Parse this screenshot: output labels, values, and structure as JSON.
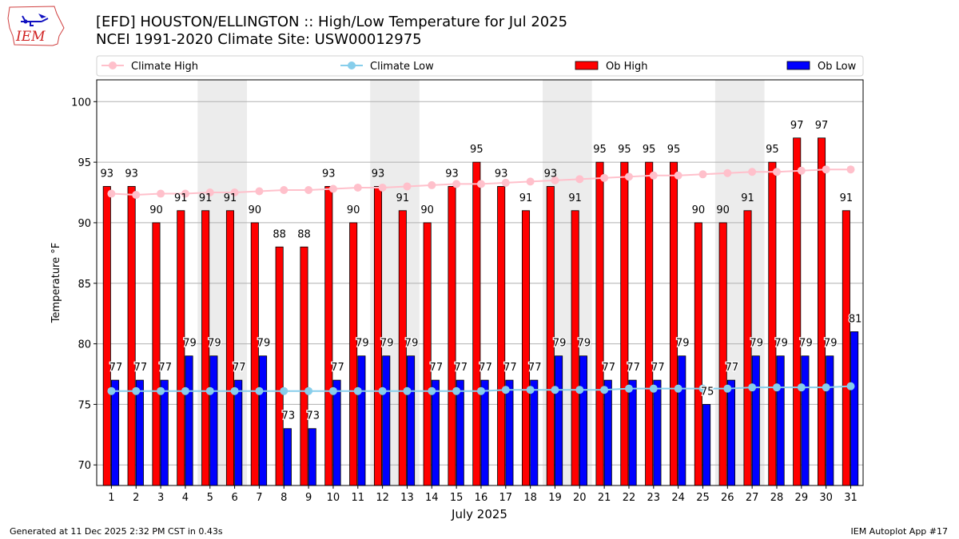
{
  "header": {
    "logo_text": "IEM",
    "title_line1": "[EFD] HOUSTON/ELLINGTON :: High/Low Temperature for Jul 2025",
    "title_line2": "NCEI 1991-2020 Climate Site: USW00012975"
  },
  "footer": {
    "left": "Generated at 11 Dec 2025 2:32 PM CST in 0.43s",
    "right": "IEM Autoplot App #17"
  },
  "chart_data": {
    "type": "bar",
    "title": "[EFD] HOUSTON/ELLINGTON :: High/Low Temperature for Jul 2025",
    "subtitle": "NCEI 1991-2020 Climate Site: USW00012975",
    "xlabel": "July 2025",
    "ylabel": "Temperature °F",
    "ylim": [
      68.3,
      101.8
    ],
    "yticks": [
      70,
      75,
      80,
      85,
      90,
      95,
      100
    ],
    "grid": "horizontal",
    "legend_position": "top",
    "weekend_shading": [
      [
        5,
        6
      ],
      [
        12,
        13
      ],
      [
        19,
        20
      ],
      [
        26,
        27
      ]
    ],
    "categories": [
      "1",
      "2",
      "3",
      "4",
      "5",
      "6",
      "7",
      "8",
      "9",
      "10",
      "11",
      "12",
      "13",
      "14",
      "15",
      "16",
      "17",
      "18",
      "19",
      "20",
      "21",
      "22",
      "23",
      "24",
      "25",
      "26",
      "27",
      "28",
      "29",
      "30",
      "31"
    ],
    "series": [
      {
        "name": "Climate High",
        "kind": "line",
        "color": "#ffc0cb",
        "values": [
          92.4,
          92.3,
          92.4,
          92.4,
          92.5,
          92.5,
          92.6,
          92.7,
          92.7,
          92.8,
          92.9,
          92.9,
          93.0,
          93.1,
          93.2,
          93.2,
          93.3,
          93.4,
          93.5,
          93.6,
          93.7,
          93.8,
          93.9,
          93.9,
          94.0,
          94.1,
          94.2,
          94.2,
          94.3,
          94.4,
          94.4
        ]
      },
      {
        "name": "Climate Low",
        "kind": "line",
        "color": "#87ceeb",
        "values": [
          76.1,
          76.1,
          76.1,
          76.1,
          76.1,
          76.1,
          76.1,
          76.1,
          76.1,
          76.1,
          76.1,
          76.1,
          76.1,
          76.1,
          76.1,
          76.1,
          76.2,
          76.2,
          76.2,
          76.2,
          76.2,
          76.3,
          76.3,
          76.3,
          76.3,
          76.3,
          76.4,
          76.4,
          76.4,
          76.4,
          76.5
        ]
      },
      {
        "name": "Ob High",
        "kind": "bar",
        "color": "#ff0000",
        "values": [
          93,
          93,
          90,
          91,
          91,
          91,
          90,
          88,
          88,
          93,
          90,
          93,
          91,
          90,
          93,
          95,
          93,
          91,
          93,
          91,
          95,
          95,
          95,
          95,
          90,
          90,
          91,
          95,
          97,
          97,
          91
        ]
      },
      {
        "name": "Ob Low",
        "kind": "bar",
        "color": "#0000ff",
        "values": [
          77,
          77,
          77,
          79,
          79,
          77,
          79,
          73,
          73,
          77,
          79,
          79,
          79,
          77,
          77,
          77,
          77,
          77,
          79,
          79,
          77,
          77,
          77,
          79,
          75,
          77,
          79,
          79,
          79,
          79,
          81
        ]
      }
    ]
  }
}
